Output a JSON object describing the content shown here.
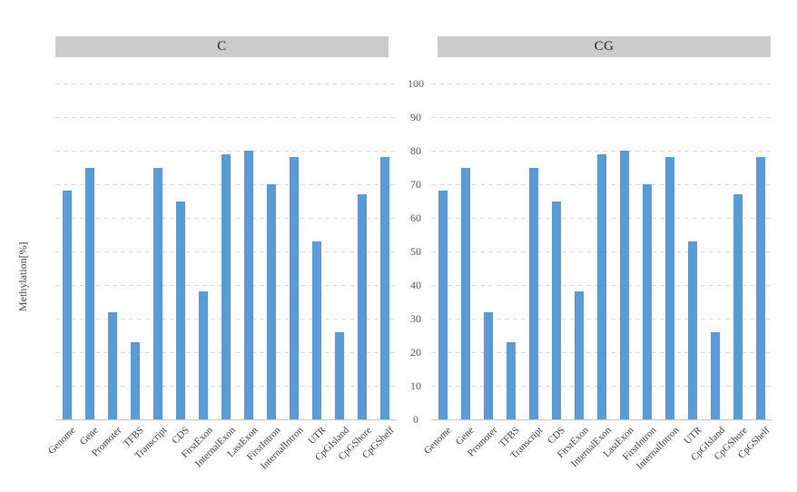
{
  "chart_data": {
    "type": "bar",
    "title": "",
    "ylabel": "Methylation[%]",
    "xlabel": "",
    "ylim": [
      0,
      100
    ],
    "ytick_interval": 10,
    "y_tick_labels": [
      "100",
      "90",
      "80",
      "70",
      "60",
      "50",
      "40",
      "30",
      "20",
      "10",
      "0"
    ],
    "grid": "horizontal-dashed",
    "legend_position": "none",
    "panel_layout": "two side-by-side panels sharing central y-axis tick labels",
    "categories": [
      "Genome",
      "Gene",
      "Promoter",
      "TFBS",
      "Transcript",
      "CDS",
      "FirstExon",
      "InternalExon",
      "LastExon",
      "FirstIntron",
      "InternalIntron",
      "UTR",
      "CpGIsland",
      "CpGShore",
      "CpGShelf"
    ],
    "series": [
      {
        "name": "C",
        "values": [
          68,
          75,
          32,
          23,
          75,
          65,
          38,
          79,
          80,
          70,
          78,
          53,
          26,
          67,
          78
        ]
      },
      {
        "name": "CG",
        "values": [
          68,
          75,
          32,
          23,
          75,
          65,
          38,
          79,
          80,
          70,
          78,
          53,
          26,
          67,
          78
        ]
      }
    ],
    "colors": {
      "bar": "#5B9BD5",
      "header_bg": "#CBCBCB",
      "gridline": "#DCDCDC",
      "axis_line": "#C6C6C6",
      "tick_text": "#595959",
      "header_text": "#262626"
    }
  }
}
